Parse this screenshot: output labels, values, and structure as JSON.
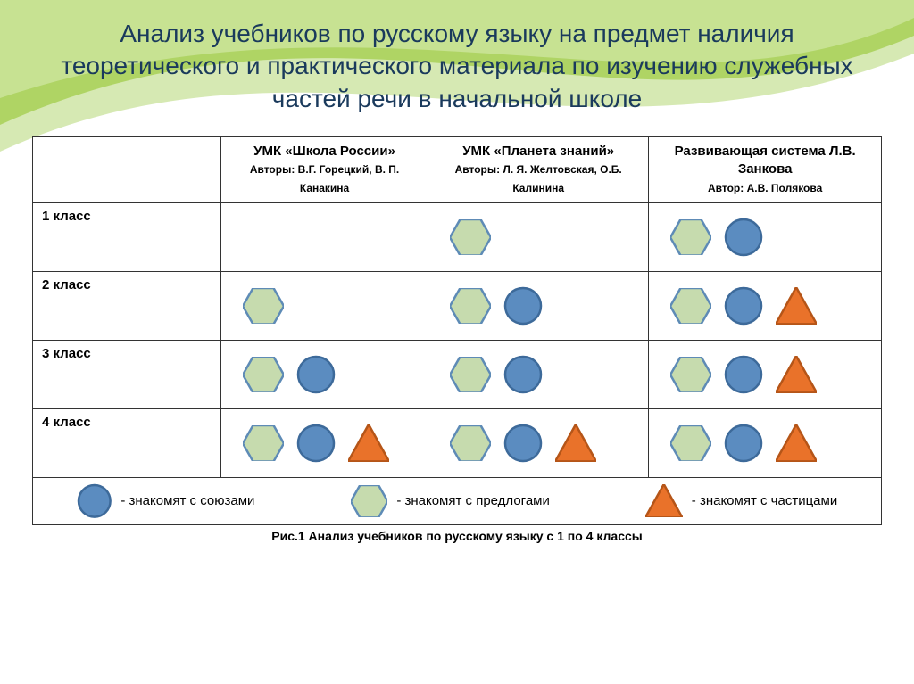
{
  "title": "Анализ учебников по русскому языку на предмет наличия теоретического и практического материала по изучению служебных частей речи в начальной школе",
  "caption": "Рис.1 Анализ учебников по русскому языку с 1 по 4 классы",
  "colors": {
    "title_text": "#1a3a5c",
    "table_border": "#333333",
    "hexagon_fill": "#c6dbae",
    "hexagon_stroke": "#5e8bb6",
    "circle_fill": "#5b8cc0",
    "circle_stroke": "#3d6a9a",
    "triangle_fill": "#e9722a",
    "triangle_stroke": "#b55518",
    "swoosh_top": "#7aa63c",
    "swoosh_mid": "#b8d96a",
    "swoosh_light": "#e5f2c5"
  },
  "columns": [
    {
      "title": "УМК «Школа России»",
      "authors": "Авторы: В.Г. Горецкий, В. П. Канакина"
    },
    {
      "title": "УМК «Планета знаний»",
      "authors": "Авторы: Л. Я. Желтовская, О.Б. Калинина"
    },
    {
      "title": "Развивающая система Л.В. Занкова",
      "authors": "Автор: А.В. Полякова"
    }
  ],
  "rows": [
    {
      "label": "1 класс",
      "cells": [
        [],
        [
          "hex"
        ],
        [
          "hex",
          "circle"
        ]
      ]
    },
    {
      "label": "2 класс",
      "cells": [
        [
          "hex"
        ],
        [
          "hex",
          "circle"
        ],
        [
          "hex",
          "circle",
          "triangle"
        ]
      ]
    },
    {
      "label": "3 класс",
      "cells": [
        [
          "hex",
          "circle"
        ],
        [
          "hex",
          "circle"
        ],
        [
          "hex",
          "circle",
          "triangle"
        ]
      ]
    },
    {
      "label": "4 класс",
      "cells": [
        [
          "hex",
          "circle",
          "triangle"
        ],
        [
          "hex",
          "circle",
          "triangle"
        ],
        [
          "hex",
          "circle",
          "triangle"
        ]
      ]
    }
  ],
  "legend": [
    {
      "shape": "circle",
      "text": "- знакомят с союзами"
    },
    {
      "shape": "hex",
      "text": "- знакомят с предлогами"
    },
    {
      "shape": "triangle",
      "text": "- знакомят с  частицами"
    }
  ],
  "shape_sizes": {
    "hex": 46,
    "circle": 44,
    "triangle": 46,
    "legend_scale": 0.9
  }
}
